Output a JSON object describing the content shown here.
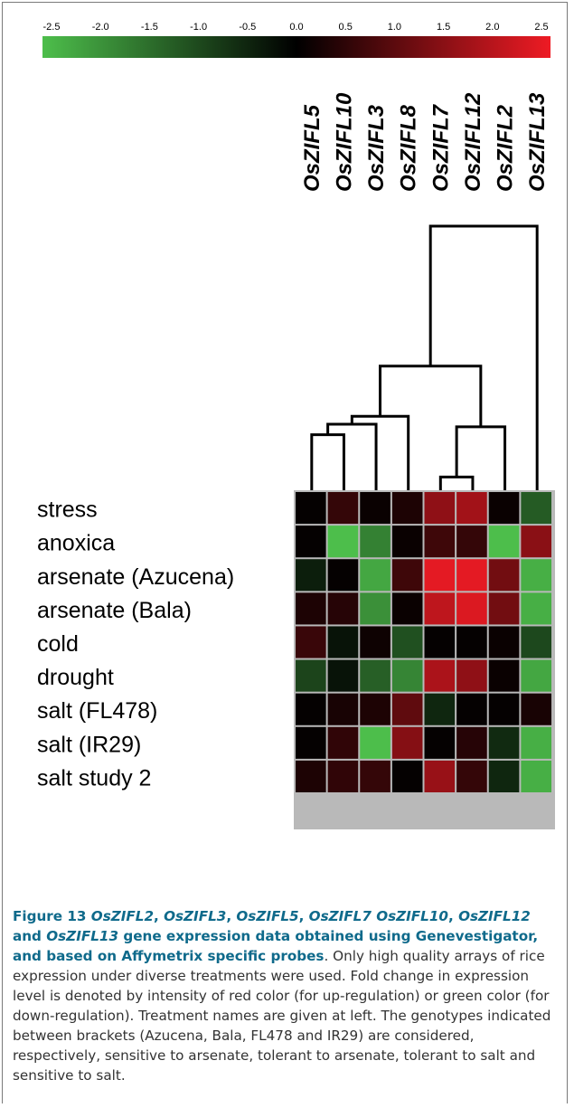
{
  "chart_data": {
    "type": "heatmap",
    "scale": {
      "ticks": [
        "-2.5",
        "-2.0",
        "-1.5",
        "-1.0",
        "-0.5",
        "0.0",
        "0.5",
        "1.0",
        "1.5",
        "2.0",
        "2.5"
      ],
      "min": -2.5,
      "max": 2.5,
      "colors": {
        "negative": "#4dbe4b",
        "zero": "#000000",
        "positive": "#ee1b24"
      }
    },
    "columns": [
      "OsZIFL5",
      "OsZIFL10",
      "OsZIFL3",
      "OsZIFL8",
      "OsZIFL7",
      "OsZIFL12",
      "OsZIFL2",
      "OsZIFL13"
    ],
    "rows": [
      "stress",
      "anoxica",
      "arsenate (Azucena)",
      "arsenate (Bala)",
      "cold",
      "drought",
      "salt (FL478)",
      "salt (IR29)",
      "salt study 2"
    ],
    "values": [
      [
        0.05,
        0.55,
        0.1,
        0.3,
        1.5,
        1.7,
        0.1,
        -1.2
      ],
      [
        0.05,
        -2.5,
        -1.7,
        0.1,
        0.65,
        0.55,
        -2.5,
        1.45
      ],
      [
        -0.4,
        0.05,
        -2.2,
        0.65,
        2.4,
        2.4,
        1.2,
        -2.3
      ],
      [
        0.3,
        0.4,
        -1.9,
        0.1,
        2.0,
        2.3,
        1.2,
        -2.3
      ],
      [
        0.6,
        -0.25,
        0.15,
        -1.05,
        0.05,
        0.05,
        0.1,
        -0.95
      ],
      [
        -0.9,
        -0.25,
        -1.25,
        -1.75,
        1.8,
        1.5,
        0.1,
        -2.2
      ],
      [
        0.05,
        0.25,
        0.3,
        1.0,
        -0.5,
        0.05,
        0.05,
        0.25
      ],
      [
        0.05,
        0.5,
        -2.5,
        1.4,
        0.05,
        0.4,
        -0.55,
        -2.3
      ],
      [
        0.3,
        0.5,
        0.55,
        0.05,
        1.6,
        0.55,
        -0.5,
        -2.3
      ]
    ],
    "dendrogram": {
      "merges": [
        {
          "a": 0,
          "b": 1,
          "height": 0.21
        },
        {
          "a": 4,
          "b": 5,
          "height": 0.05
        },
        {
          "a": 8,
          "b": 2,
          "height": 0.25
        },
        {
          "a": 10,
          "b": 3,
          "height": 0.28
        },
        {
          "a": 9,
          "b": 6,
          "height": 0.24
        },
        {
          "a": 11,
          "b": 12,
          "height": 0.47
        },
        {
          "a": 13,
          "b": 7,
          "height": 1.0
        }
      ]
    }
  },
  "caption": {
    "figure_label": "Figure 13",
    "genes_a": "OsZIFL2",
    "genes_b": "OsZIFL3",
    "genes_c": "OsZIFL5",
    "genes_d": "OsZIFL7 OsZIFL10",
    "genes_e": "OsZIFL12",
    "and_word": "and",
    "genes_f": "OsZIFL13",
    "title_rest": "gene expression data obtained using Genevestigator, and based on Affymetrix specific probes",
    "body": ". Only high quality arrays of rice expression under diverse treatments were used. Fold change in expression level is denoted by intensity of red color (for up-regulation) or green color (for down-regulation). Treatment names are given at left. The genotypes indicated between brackets (Azucena, Bala, FL478 and IR29) are considered, respectively, sensitive to arsenate, tolerant to arsenate, tolerant to salt and sensitive to salt."
  }
}
